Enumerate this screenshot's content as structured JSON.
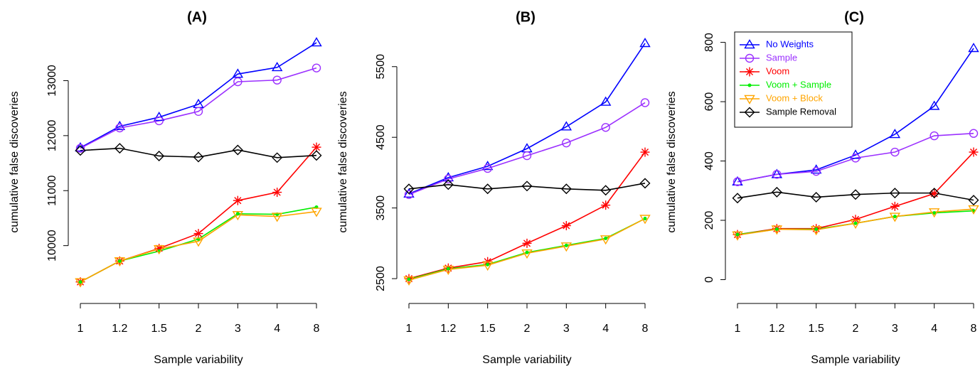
{
  "chart_data": [
    {
      "type": "line",
      "title": "(A)",
      "x_label": "Sample variability",
      "y_label": "cumulative false discoveries",
      "categories": [
        "1",
        "1.2",
        "1.5",
        "2",
        "3",
        "4",
        "8"
      ],
      "ylim": [
        9220,
        13820
      ],
      "yticks": [
        10000,
        11000,
        12000,
        13000
      ],
      "series": [
        {
          "name": "No Weights",
          "color": "#0000ff",
          "marker": "triangle-up",
          "values": [
            11780,
            12170,
            12335,
            12570,
            13120,
            13240,
            13690
          ]
        },
        {
          "name": "Sample",
          "color": "#9b30ff",
          "marker": "circle",
          "values": [
            11770,
            12140,
            12270,
            12440,
            12980,
            13010,
            13230
          ]
        },
        {
          "name": "Voom",
          "color": "#ff0000",
          "marker": "asterisk",
          "values": [
            9340,
            9720,
            9950,
            10220,
            10820,
            10970,
            11790
          ]
        },
        {
          "name": "Voom + Sample",
          "color": "#00ee00",
          "marker": "dot",
          "values": [
            9340,
            9720,
            9900,
            10120,
            10580,
            10570,
            10700
          ]
        },
        {
          "name": "Voom + Block",
          "color": "#ffa500",
          "marker": "triangle-down",
          "values": [
            9340,
            9720,
            9940,
            10080,
            10560,
            10530,
            10620
          ]
        },
        {
          "name": "Sample Removal",
          "color": "#000000",
          "marker": "diamond",
          "values": [
            11730,
            11770,
            11630,
            11610,
            11740,
            11600,
            11640
          ]
        }
      ]
    },
    {
      "type": "line",
      "title": "(B)",
      "x_label": "Sample variability",
      "y_label": "cumulative false discoveries",
      "categories": [
        "1",
        "1.2",
        "1.5",
        "2",
        "3",
        "4",
        "8"
      ],
      "ylim": [
        2360,
        5940
      ],
      "yticks": [
        2500,
        3500,
        4500,
        5500
      ],
      "series": [
        {
          "name": "No Weights",
          "color": "#0000ff",
          "marker": "triangle-up",
          "values": [
            3700,
            3930,
            4090,
            4340,
            4650,
            5000,
            5830
          ]
        },
        {
          "name": "Sample",
          "color": "#9b30ff",
          "marker": "circle",
          "values": [
            3690,
            3910,
            4060,
            4240,
            4420,
            4640,
            4990
          ]
        },
        {
          "name": "Voom",
          "color": "#ff0000",
          "marker": "asterisk",
          "values": [
            2500,
            2650,
            2740,
            3000,
            3250,
            3540,
            4290
          ]
        },
        {
          "name": "Voom + Sample",
          "color": "#00ee00",
          "marker": "dot",
          "values": [
            2490,
            2640,
            2700,
            2870,
            2970,
            3070,
            3350
          ]
        },
        {
          "name": "Voom + Block",
          "color": "#ffa500",
          "marker": "triangle-down",
          "values": [
            2480,
            2630,
            2690,
            2860,
            2960,
            3060,
            3350
          ]
        },
        {
          "name": "Sample Removal",
          "color": "#000000",
          "marker": "diamond",
          "values": [
            3770,
            3830,
            3770,
            3810,
            3770,
            3750,
            3850
          ]
        }
      ]
    },
    {
      "type": "line",
      "title": "(C)",
      "x_label": "Sample variability",
      "y_label": "cumulative false discoveries",
      "categories": [
        "1",
        "1.2",
        "1.5",
        "2",
        "3",
        "4",
        "8"
      ],
      "ylim": [
        -30,
        823
      ],
      "yticks": [
        0,
        200,
        400,
        600,
        800
      ],
      "legend": "top-left",
      "series": [
        {
          "name": "No Weights",
          "color": "#0000ff",
          "marker": "triangle-up",
          "values": [
            330,
            355,
            370,
            420,
            490,
            585,
            780
          ]
        },
        {
          "name": "Sample",
          "color": "#9b30ff",
          "marker": "circle",
          "values": [
            330,
            355,
            365,
            410,
            430,
            485,
            493
          ]
        },
        {
          "name": "Voom",
          "color": "#ff0000",
          "marker": "asterisk",
          "values": [
            152,
            172,
            172,
            203,
            247,
            290,
            430
          ]
        },
        {
          "name": "Voom + Sample",
          "color": "#00ee00",
          "marker": "dot",
          "values": [
            152,
            170,
            170,
            190,
            213,
            225,
            232
          ]
        },
        {
          "name": "Voom + Block",
          "color": "#ffa500",
          "marker": "triangle-down",
          "values": [
            150,
            170,
            168,
            190,
            213,
            228,
            238
          ]
        },
        {
          "name": "Sample Removal",
          "color": "#000000",
          "marker": "diamond",
          "values": [
            275,
            295,
            278,
            287,
            292,
            292,
            268
          ]
        }
      ]
    }
  ]
}
